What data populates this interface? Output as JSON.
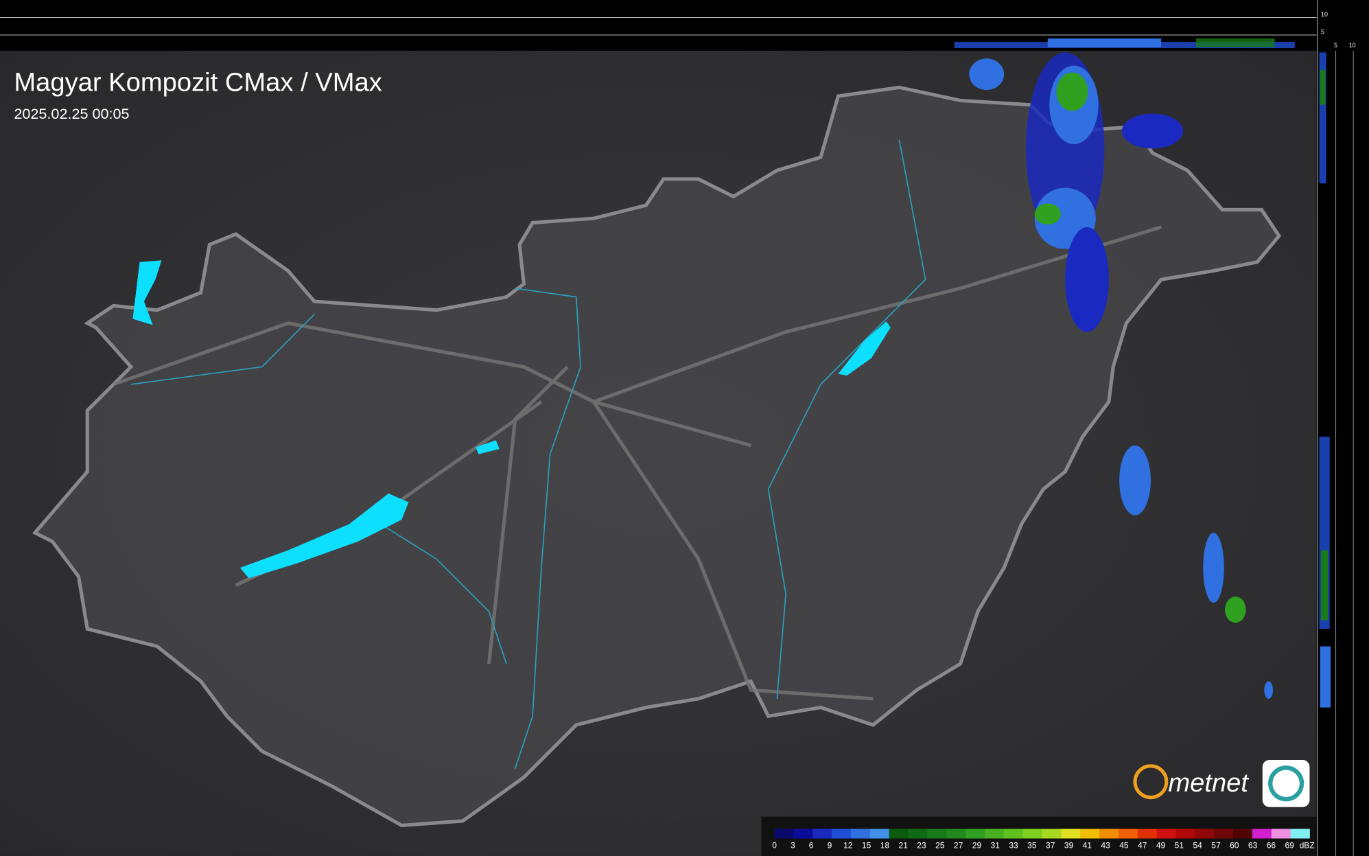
{
  "header": {
    "title": "Magyar Kompozit CMax / VMax",
    "timestamp": "2025.02.25 00:05"
  },
  "logo": "metnet",
  "profile_axis": {
    "top_ticks": [
      10,
      5
    ],
    "side_ticks": [
      5,
      10
    ]
  },
  "legend": {
    "ticks": [
      0,
      3,
      6,
      9,
      12,
      15,
      18,
      21,
      23,
      25,
      27,
      29,
      31,
      33,
      35,
      37,
      39,
      41,
      43,
      45,
      47,
      49,
      51,
      54,
      57,
      60,
      63,
      66,
      69
    ],
    "unit": "dBZ",
    "colors": [
      "#0a0a6e",
      "#0c0c9a",
      "#1a2ac0",
      "#2050d8",
      "#3070e0",
      "#4090e8",
      "#0a5a10",
      "#106a14",
      "#187a18",
      "#208a1c",
      "#30a020",
      "#48b020",
      "#60c020",
      "#80d020",
      "#a8d820",
      "#e0e020",
      "#f0c000",
      "#f09000",
      "#f06000",
      "#e03000",
      "#d01010",
      "#b00808",
      "#900808",
      "#700606",
      "#500404",
      "#d020d0",
      "#f090e0",
      "#80f0f0"
    ]
  }
}
